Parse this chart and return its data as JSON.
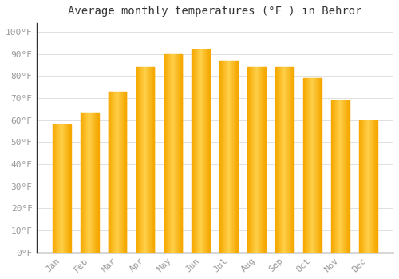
{
  "title": "Average monthly temperatures (°F ) in Behror",
  "months": [
    "Jan",
    "Feb",
    "Mar",
    "Apr",
    "May",
    "Jun",
    "Jul",
    "Aug",
    "Sep",
    "Oct",
    "Nov",
    "Dec"
  ],
  "values": [
    58,
    63,
    73,
    84,
    90,
    92,
    87,
    84,
    84,
    79,
    69,
    60
  ],
  "bar_color_center": "#FFD04A",
  "bar_color_edge": "#F5A800",
  "background_color": "#FFFFFF",
  "grid_color": "#E0E0E0",
  "yticks": [
    0,
    10,
    20,
    30,
    40,
    50,
    60,
    70,
    80,
    90,
    100
  ],
  "ytick_labels": [
    "0°F",
    "10°F",
    "20°F",
    "30°F",
    "40°F",
    "50°F",
    "60°F",
    "70°F",
    "80°F",
    "90°F",
    "100°F"
  ],
  "ylim": [
    0,
    104
  ],
  "title_fontsize": 10,
  "tick_fontsize": 8,
  "tick_color": "#999999",
  "spine_color": "#333333",
  "bar_width": 0.65
}
